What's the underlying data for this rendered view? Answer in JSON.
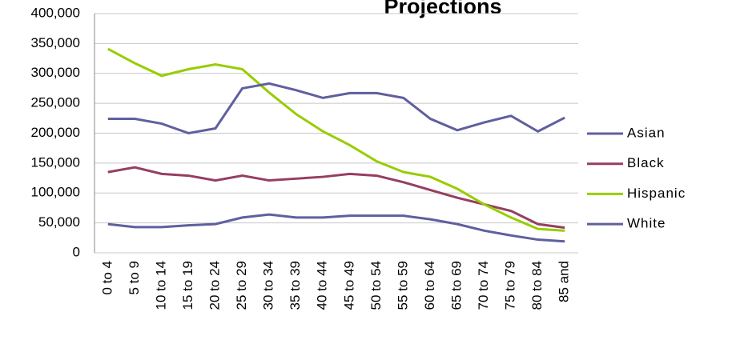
{
  "chart_data": {
    "type": "line",
    "title": "Projections",
    "categories": [
      "0 to 4",
      "5 to 9",
      "10 to 14",
      "15 to 19",
      "20 to 24",
      "25 to 29",
      "30 to 34",
      "35 to 39",
      "40 to 44",
      "45 to 49",
      "50 to 54",
      "55 to 59",
      "60 to 64",
      "65 to 69",
      "70 to 74",
      "75 to 79",
      "80 to 84",
      "85 and"
    ],
    "series": [
      {
        "name": "Asian",
        "color": "#5f5f9f",
        "values": [
          48000,
          43000,
          43000,
          46000,
          48000,
          59000,
          64000,
          59000,
          59000,
          62000,
          62000,
          62000,
          56000,
          48000,
          37000,
          29000,
          22000,
          19000
        ]
      },
      {
        "name": "Black",
        "color": "#963e62",
        "values": [
          135000,
          143000,
          132000,
          129000,
          121000,
          129000,
          121000,
          124000,
          127000,
          132000,
          129000,
          118000,
          105000,
          92000,
          81000,
          70000,
          48000,
          42000
        ]
      },
      {
        "name": "Hispanic",
        "color": "#99cc00",
        "values": [
          341000,
          317000,
          296000,
          307000,
          315000,
          307000,
          268000,
          232000,
          203000,
          180000,
          153000,
          135000,
          127000,
          107000,
          81000,
          59000,
          40000,
          37000
        ]
      },
      {
        "name": "White",
        "color": "#5f5f9f",
        "values": [
          224000,
          224000,
          216000,
          200000,
          208000,
          275000,
          283000,
          272000,
          259000,
          267000,
          267000,
          259000,
          224000,
          205000,
          218000,
          229000,
          203000,
          226000
        ]
      }
    ],
    "ylim": [
      0,
      400000
    ],
    "yticks": [
      0,
      {
        "value": 50000,
        "label": "50,000"
      },
      {
        "value": 100000,
        "label": "100,000"
      },
      {
        "value": 150000,
        "label": "150,000"
      },
      {
        "value": 200000,
        "label": "200,000"
      },
      {
        "value": 250000,
        "label": "250,000"
      },
      {
        "value": 300000,
        "label": "300,000"
      },
      {
        "value": 350000,
        "label": "350,000"
      },
      {
        "value": 400000,
        "label": "400,000"
      }
    ],
    "grid": true,
    "legend": "right"
  }
}
